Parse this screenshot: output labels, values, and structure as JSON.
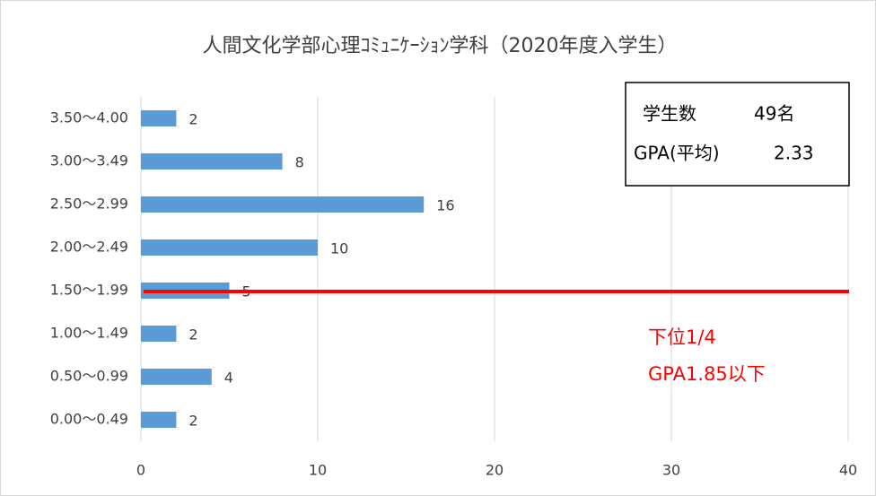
{
  "chart_data": {
    "type": "bar",
    "orientation": "horizontal",
    "title": "人間文化学部心理ｺﾐｭﾆｹｰｼｮﾝ学科（2020年度入学生）",
    "categories": [
      "3.50～4.00",
      "3.00～3.49",
      "2.50～2.99",
      "2.00～2.49",
      "1.50～1.99",
      "1.00～1.49",
      "0.50～0.99",
      "0.00～0.49"
    ],
    "values": [
      2,
      8,
      16,
      10,
      5,
      2,
      4,
      2
    ],
    "color": "#5b9bd5",
    "xlim": [
      0,
      40
    ],
    "xticks": [
      0,
      10,
      20,
      30,
      40
    ],
    "grid": true,
    "annotations": [
      "学生数",
      "49名",
      "GPA(平均)",
      "2.33",
      "下位1/4",
      "GPA1.85以下"
    ]
  }
}
